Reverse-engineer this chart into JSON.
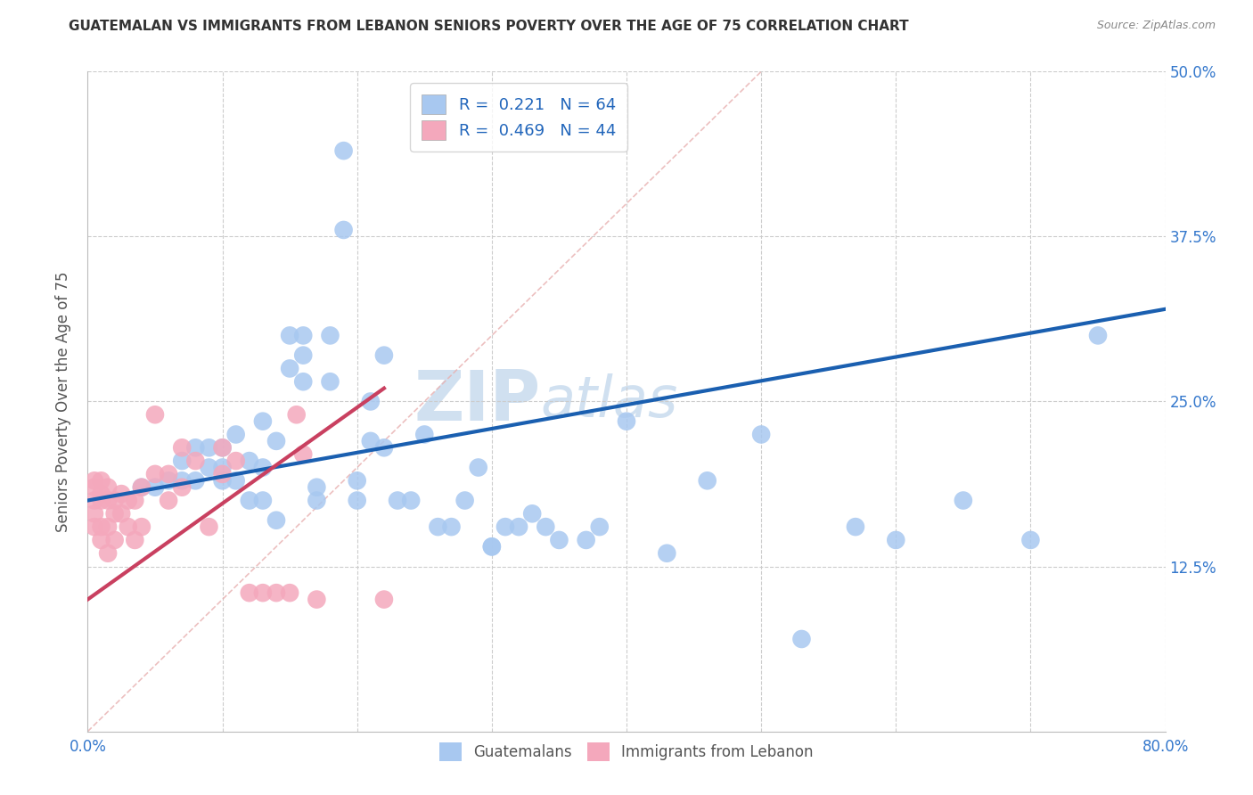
{
  "title": "GUATEMALAN VS IMMIGRANTS FROM LEBANON SENIORS POVERTY OVER THE AGE OF 75 CORRELATION CHART",
  "source": "Source: ZipAtlas.com",
  "ylabel": "Seniors Poverty Over the Age of 75",
  "xlim": [
    0,
    0.8
  ],
  "ylim": [
    0,
    0.5
  ],
  "legend_r1": "R =  0.221   N = 64",
  "legend_r2": "R =  0.469   N = 44",
  "blue_color": "#a8c8f0",
  "pink_color": "#f4a8bc",
  "blue_line_color": "#1a5fb0",
  "pink_line_color": "#c94060",
  "diagonal_color": "#e8b0b0",
  "watermark": "ZIPatlas",
  "watermark_color": "#d0e0f0",
  "blue_scatter_x": [
    0.04,
    0.05,
    0.06,
    0.07,
    0.07,
    0.08,
    0.08,
    0.09,
    0.09,
    0.1,
    0.1,
    0.1,
    0.11,
    0.11,
    0.12,
    0.12,
    0.13,
    0.13,
    0.13,
    0.14,
    0.14,
    0.15,
    0.15,
    0.16,
    0.16,
    0.16,
    0.17,
    0.17,
    0.18,
    0.18,
    0.19,
    0.19,
    0.2,
    0.2,
    0.21,
    0.21,
    0.22,
    0.22,
    0.23,
    0.24,
    0.25,
    0.26,
    0.27,
    0.28,
    0.29,
    0.3,
    0.3,
    0.31,
    0.32,
    0.33,
    0.34,
    0.35,
    0.37,
    0.38,
    0.4,
    0.43,
    0.46,
    0.5,
    0.53,
    0.57,
    0.6,
    0.65,
    0.7,
    0.75
  ],
  "blue_scatter_y": [
    0.185,
    0.185,
    0.19,
    0.19,
    0.205,
    0.19,
    0.215,
    0.2,
    0.215,
    0.19,
    0.2,
    0.215,
    0.19,
    0.225,
    0.175,
    0.205,
    0.175,
    0.2,
    0.235,
    0.16,
    0.22,
    0.275,
    0.3,
    0.265,
    0.285,
    0.3,
    0.175,
    0.185,
    0.265,
    0.3,
    0.38,
    0.44,
    0.175,
    0.19,
    0.22,
    0.25,
    0.215,
    0.285,
    0.175,
    0.175,
    0.225,
    0.155,
    0.155,
    0.175,
    0.2,
    0.14,
    0.14,
    0.155,
    0.155,
    0.165,
    0.155,
    0.145,
    0.145,
    0.155,
    0.235,
    0.135,
    0.19,
    0.225,
    0.07,
    0.155,
    0.145,
    0.175,
    0.145,
    0.3
  ],
  "pink_scatter_x": [
    0.005,
    0.005,
    0.005,
    0.005,
    0.005,
    0.01,
    0.01,
    0.01,
    0.01,
    0.01,
    0.015,
    0.015,
    0.015,
    0.015,
    0.02,
    0.02,
    0.02,
    0.025,
    0.025,
    0.03,
    0.03,
    0.035,
    0.035,
    0.04,
    0.04,
    0.05,
    0.05,
    0.06,
    0.06,
    0.07,
    0.07,
    0.08,
    0.09,
    0.1,
    0.1,
    0.11,
    0.12,
    0.13,
    0.14,
    0.15,
    0.155,
    0.16,
    0.17,
    0.22
  ],
  "pink_scatter_y": [
    0.19,
    0.185,
    0.175,
    0.165,
    0.155,
    0.19,
    0.18,
    0.175,
    0.155,
    0.145,
    0.185,
    0.175,
    0.155,
    0.135,
    0.175,
    0.165,
    0.145,
    0.18,
    0.165,
    0.175,
    0.155,
    0.175,
    0.145,
    0.185,
    0.155,
    0.24,
    0.195,
    0.195,
    0.175,
    0.215,
    0.185,
    0.205,
    0.155,
    0.215,
    0.195,
    0.205,
    0.105,
    0.105,
    0.105,
    0.105,
    0.24,
    0.21,
    0.1,
    0.1
  ],
  "blue_line_x0": 0.0,
  "blue_line_y0": 0.175,
  "blue_line_x1": 0.8,
  "blue_line_y1": 0.32,
  "pink_line_x0": 0.0,
  "pink_line_y0": 0.1,
  "pink_line_x1": 0.22,
  "pink_line_y1": 0.26
}
